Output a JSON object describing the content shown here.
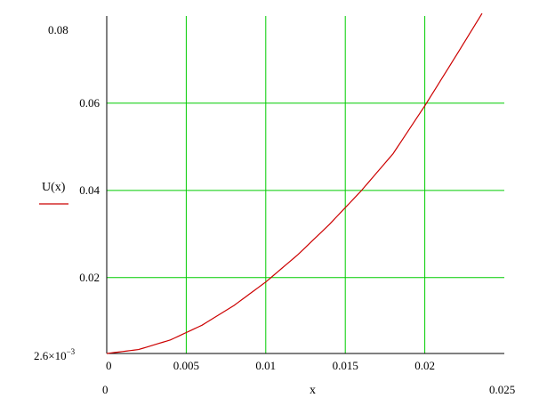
{
  "chart_data": {
    "type": "line",
    "title": "",
    "xlabel": "x",
    "ylabel": "U(x)",
    "xlim": [
      0,
      0.025
    ],
    "ylim": [
      0.0026,
      0.08
    ],
    "x_range_labels": {
      "min": "0",
      "max": "0.025"
    },
    "y_min_label": {
      "mantissa": "2.6×10",
      "exponent": "−3"
    },
    "y_max_label": "0.08",
    "xticks": [
      {
        "value": 0,
        "label": "0"
      },
      {
        "value": 0.005,
        "label": "0.005"
      },
      {
        "value": 0.01,
        "label": "0.01"
      },
      {
        "value": 0.015,
        "label": "0.015"
      },
      {
        "value": 0.02,
        "label": "0.02"
      }
    ],
    "yticks": [
      {
        "value": 0.02,
        "label": "0.02"
      },
      {
        "value": 0.04,
        "label": "0.04"
      },
      {
        "value": 0.06,
        "label": "0.06"
      }
    ],
    "grid": true,
    "grid_color": "#00cc00",
    "series": [
      {
        "name": "U(x)",
        "color": "#cc0000",
        "x": [
          0,
          0.002,
          0.004,
          0.006,
          0.008,
          0.01,
          0.012,
          0.014,
          0.016,
          0.018,
          0.02,
          0.022,
          0.0236
        ],
        "y": [
          0.0026,
          0.0035,
          0.0057,
          0.0091,
          0.0136,
          0.019,
          0.0252,
          0.0322,
          0.0399,
          0.0484,
          0.0594,
          0.0711,
          0.0806
        ]
      }
    ]
  }
}
